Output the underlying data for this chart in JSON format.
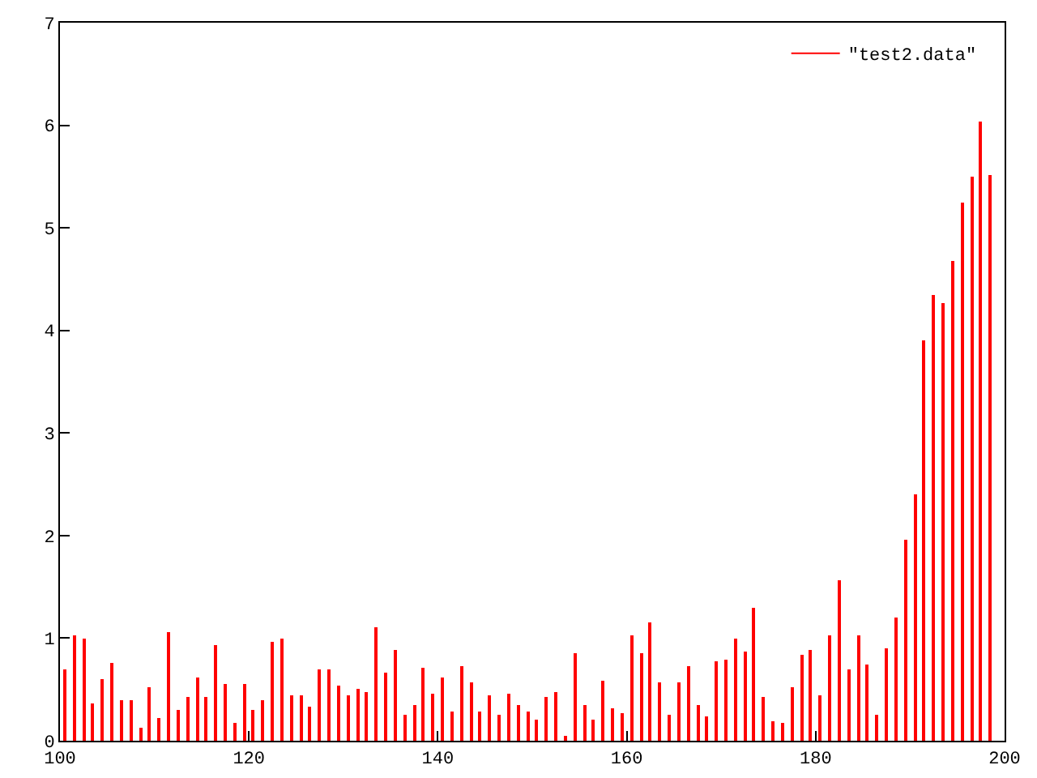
{
  "chart_data": {
    "type": "bar",
    "x": [
      100.5,
      101.5,
      102.5,
      103.5,
      104.5,
      105.5,
      106.5,
      107.5,
      108.5,
      109.5,
      110.5,
      111.5,
      112.5,
      113.5,
      114.5,
      115.5,
      116.5,
      117.5,
      118.5,
      119.5,
      120.5,
      121.5,
      122.5,
      123.5,
      124.5,
      125.5,
      126.5,
      127.5,
      128.5,
      129.5,
      130.5,
      131.5,
      132.5,
      133.5,
      134.5,
      135.5,
      136.5,
      137.5,
      138.5,
      139.5,
      140.5,
      141.5,
      142.5,
      143.5,
      144.5,
      145.5,
      146.5,
      147.5,
      148.5,
      149.5,
      150.5,
      151.5,
      152.5,
      153.5,
      154.5,
      155.5,
      156.5,
      157.5,
      158.5,
      159.5,
      160.5,
      161.5,
      162.5,
      163.5,
      164.5,
      165.5,
      166.5,
      167.5,
      168.5,
      169.5,
      170.5,
      171.5,
      172.5,
      173.5,
      174.5,
      175.5,
      176.5,
      177.5,
      178.5,
      179.5,
      180.5,
      181.5,
      182.5,
      183.5,
      184.5,
      185.5,
      186.5,
      187.5,
      188.5,
      189.5,
      190.5,
      191.5,
      192.5,
      193.5,
      194.5,
      195.5,
      196.5,
      197.5,
      198.5
    ],
    "series": [
      {
        "name": "\"test2.data\"",
        "color": "#ff0000",
        "values": [
          0.7,
          1.02,
          0.99,
          0.37,
          0.6,
          0.76,
          0.39,
          0.4,
          0.13,
          0.52,
          0.22,
          1.06,
          0.3,
          0.42,
          0.62,
          0.42,
          0.94,
          0.55,
          0.18,
          0.56,
          0.3,
          0.4,
          0.96,
          0.99,
          0.44,
          0.44,
          0.33,
          0.7,
          0.7,
          0.53,
          0.44,
          0.5,
          0.48,
          1.1,
          0.67,
          0.89,
          0.25,
          0.35,
          0.71,
          0.46,
          0.62,
          0.29,
          0.72,
          0.57,
          0.29,
          0.45,
          0.26,
          0.46,
          0.35,
          0.29,
          0.21,
          0.43,
          0.48,
          0.05,
          0.85,
          0.34,
          0.21,
          0.59,
          0.31,
          0.27,
          1.02,
          0.85,
          1.16,
          0.57,
          0.25,
          0.57,
          0.73,
          0.35,
          0.24,
          0.78,
          0.79,
          1.0,
          0.87,
          1.3,
          0.43,
          0.19,
          0.17,
          0.52,
          0.84,
          0.88,
          0.44,
          1.03,
          1.56,
          0.69,
          1.03,
          0.74,
          0.25,
          0.9,
          1.2,
          1.96,
          2.4,
          3.91,
          4.34,
          4.27,
          4.67,
          5.25,
          5.5,
          6.04,
          5.52
        ]
      }
    ],
    "xlim": [
      100,
      200
    ],
    "xticks": [
      100,
      120,
      140,
      160,
      180,
      200
    ],
    "ylim": [
      0,
      7
    ],
    "yticks": [
      0,
      1,
      2,
      3,
      4,
      5,
      6,
      7
    ],
    "legend": "top right"
  }
}
